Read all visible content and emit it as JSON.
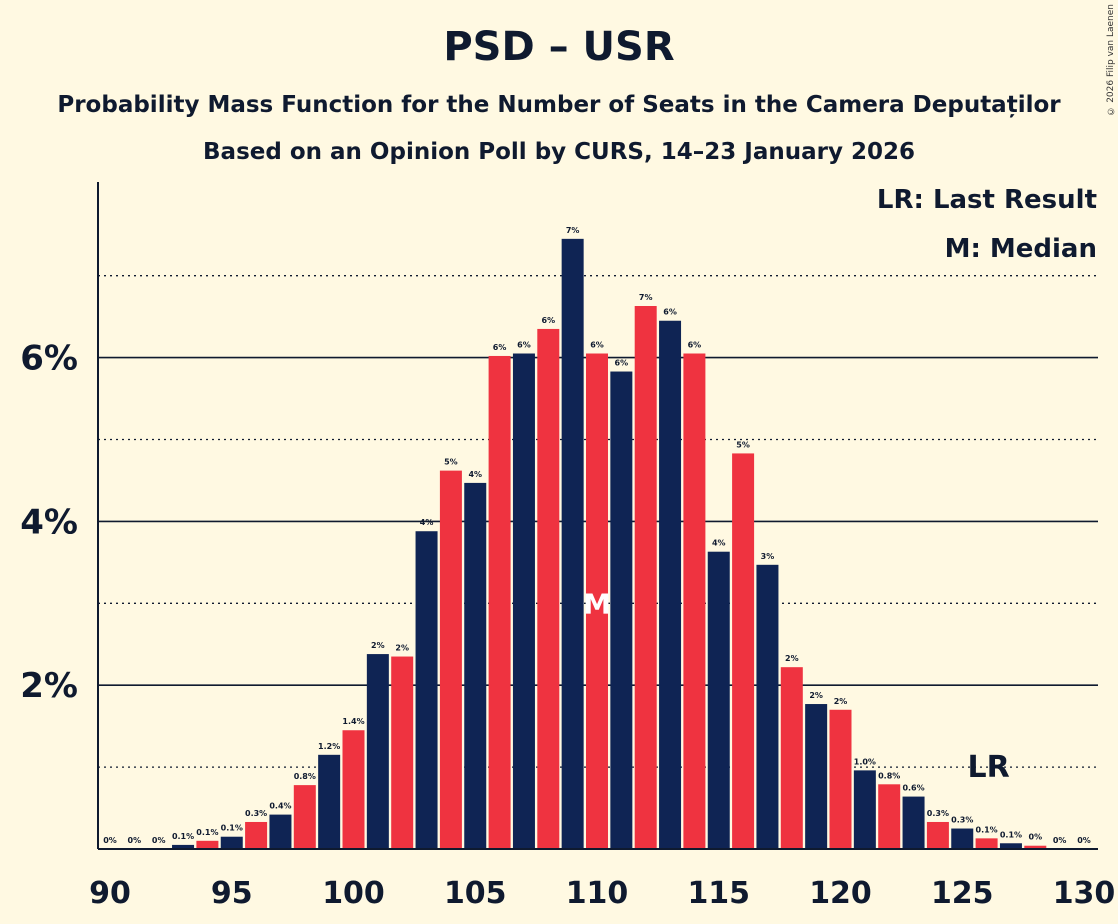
{
  "header": {
    "title": "PSD – USR",
    "subtitle": "Probability Mass Function for the Number of Seats in the Camera Deputaților",
    "source": "Based on an Opinion Poll by CURS, 14–23 January 2026",
    "copyright": "© 2026 Filip van Laenen"
  },
  "legend": {
    "last_result": "LR: Last Result",
    "median": "M: Median"
  },
  "colors": {
    "navy": "#0f2454",
    "red": "#ef3340",
    "background": "#fff9e2",
    "text": "#0f1a2f"
  },
  "chart_data": {
    "type": "bar",
    "title": "PSD – USR",
    "xlabel": "",
    "ylabel": "",
    "ylim": [
      0,
      8
    ],
    "xlim": [
      90,
      130
    ],
    "x_ticks": [
      "90",
      "95",
      "100",
      "105",
      "110",
      "115",
      "120",
      "125",
      "130"
    ],
    "y_ticks": [
      "2%",
      "4%",
      "6%"
    ],
    "categories": [
      90,
      91,
      92,
      93,
      94,
      95,
      96,
      97,
      98,
      99,
      100,
      101,
      102,
      103,
      104,
      105,
      106,
      107,
      108,
      109,
      110,
      111,
      112,
      113,
      114,
      115,
      116,
      117,
      118,
      119,
      120,
      121,
      122,
      123,
      124,
      125,
      126,
      127,
      128,
      129,
      130
    ],
    "values": [
      0,
      0,
      0,
      0.05,
      0.1,
      0.15,
      0.33,
      0.42,
      0.78,
      1.15,
      1.45,
      2.38,
      2.35,
      3.88,
      4.62,
      4.47,
      6.02,
      6.05,
      6.35,
      7.45,
      6.05,
      5.83,
      6.63,
      6.45,
      6.05,
      3.63,
      4.83,
      3.47,
      2.22,
      1.77,
      1.7,
      0.96,
      0.79,
      0.64,
      0.33,
      0.25,
      0.13,
      0.07,
      0.04,
      0,
      0
    ],
    "labels": [
      "0%",
      "0%",
      "0%",
      "0.1%",
      "0.1%",
      "0.1%",
      "0.3%",
      "0.4%",
      "0.8%",
      "1.2%",
      "1.4%",
      "2%",
      "2%",
      "4%",
      "5%",
      "4%",
      "6%",
      "6%",
      "6%",
      "7%",
      "6%",
      "6%",
      "7%",
      "6%",
      "6%",
      "4%",
      "5%",
      "3%",
      "2%",
      "2%",
      "2%",
      "1.0%",
      "0.8%",
      "0.6%",
      "0.3%",
      "0.3%",
      "0.1%",
      "0.1%",
      "0%",
      "0%",
      "0%"
    ],
    "median_seat": 110,
    "median_marker": "M",
    "last_result_seat": 126,
    "last_result_marker": "LR"
  }
}
